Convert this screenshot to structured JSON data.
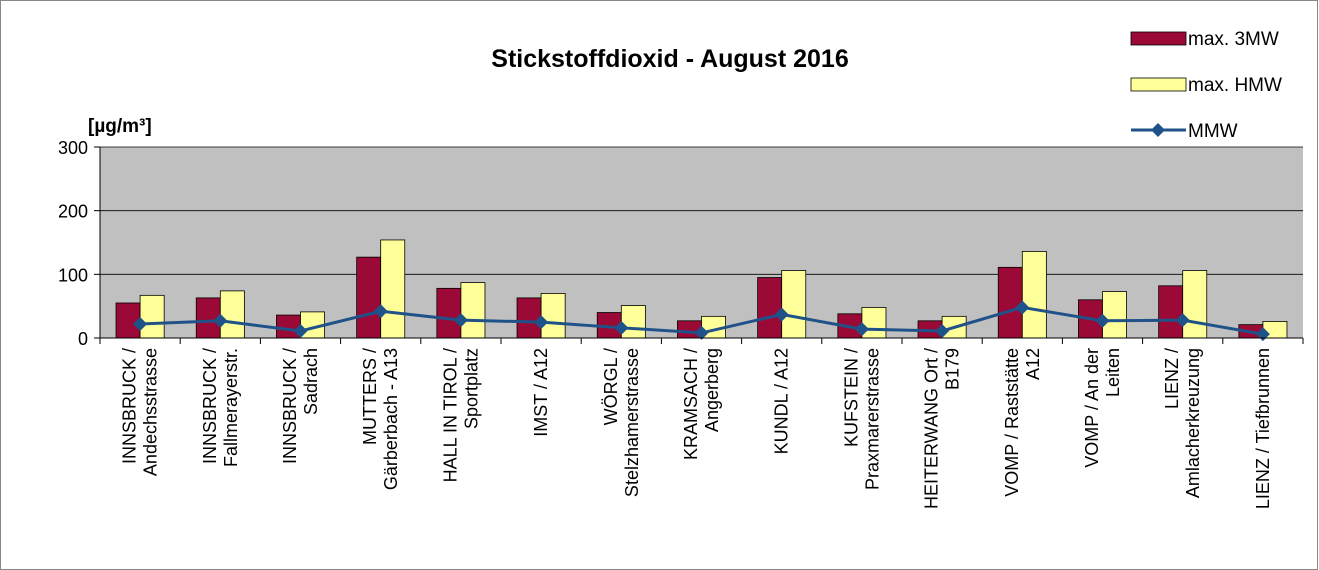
{
  "chart_data": {
    "type": "bar",
    "title": "Stickstoffdioxid - August 2016",
    "y_label": "[µg/m³]",
    "categories": [
      "INNSBRUCK /\nAndechsstrasse",
      "INNSBRUCK /\nFallmerayerstr.",
      "INNSBRUCK /\nSadrach",
      "MUTTERS /\nGärberbach - A13",
      "HALL IN TIROL /\nSportplatz",
      "IMST / A12",
      "WÖRGL /\nStelzhamerstrasse",
      "KRAMSACH /\nAngerberg",
      "KUNDL / A12",
      "KUFSTEIN /\nPraxmarerstrasse",
      "HEITERWANG Ort /\nB179",
      "VOMP / Raststätte\nA12",
      "VOMP / An der\nLeiten",
      "LIENZ /\nAmlacherkreuzung",
      "LIENZ / Tiefbrunnen"
    ],
    "series": [
      {
        "name": "max. 3MW",
        "type": "bar",
        "color": "#9b0a36",
        "values": [
          55,
          63,
          36,
          127,
          78,
          63,
          40,
          27,
          95,
          38,
          27,
          111,
          60,
          82,
          21
        ]
      },
      {
        "name": "max. HMW",
        "type": "bar",
        "color": "#ffff99",
        "values": [
          67,
          74,
          41,
          154,
          87,
          70,
          51,
          34,
          106,
          48,
          34,
          136,
          73,
          106,
          26
        ]
      },
      {
        "name": "MMW",
        "type": "line",
        "color": "#1f5288",
        "values": [
          22,
          27,
          11,
          42,
          28,
          25,
          16,
          8,
          37,
          14,
          11,
          48,
          27,
          28,
          6
        ]
      }
    ],
    "ylim": [
      0,
      300
    ],
    "yticks": [
      0,
      100,
      200,
      300
    ],
    "grid": true,
    "legend": "top-right"
  }
}
